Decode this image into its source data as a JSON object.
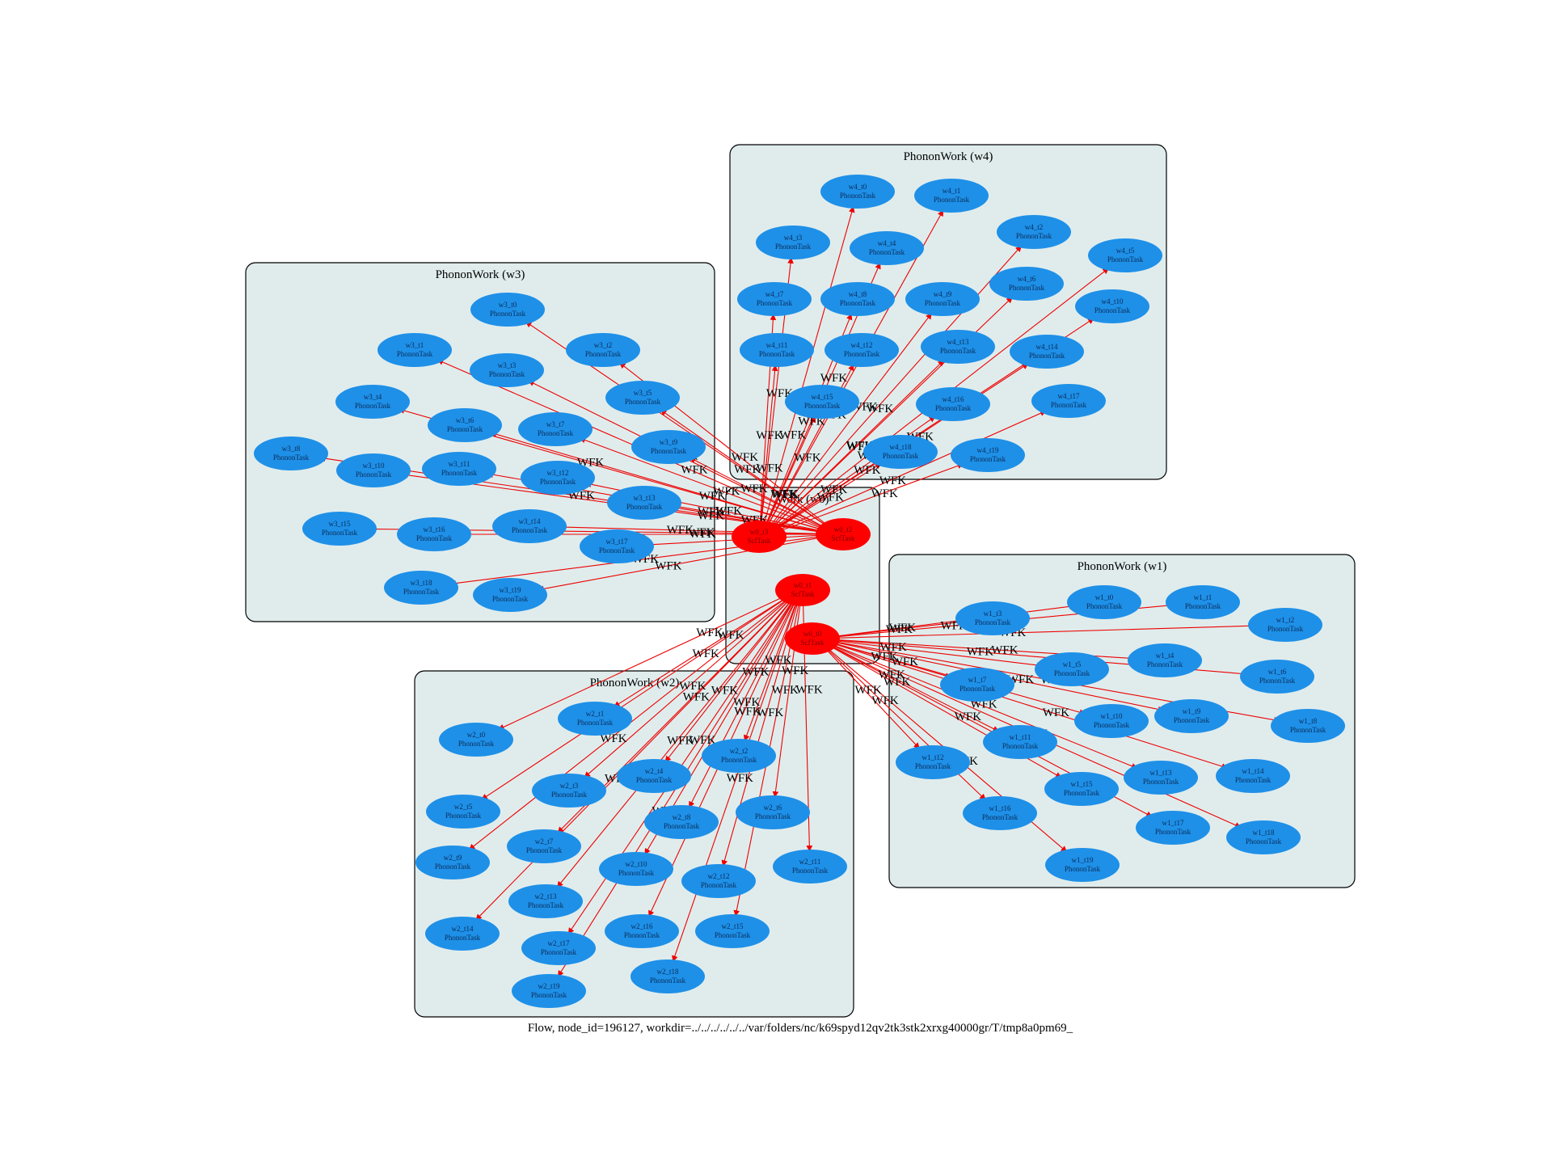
{
  "caption": "Flow, node_id=196127, workdir=../../../../../../var/folders/nc/k69spyd12qv2tk3stk2xrxg40000gr/T/tmp8a0pm69_",
  "edge_label": "WFK",
  "colors": {
    "edge": "#ee0000",
    "phonon_node": "#1e90e8",
    "scf_node": "#ff0000",
    "cluster_fill": "#e0ecec"
  },
  "clusters": [
    {
      "id": "w0",
      "label": "Work (w0)"
    },
    {
      "id": "w1",
      "label": "PhononWork (w1)"
    },
    {
      "id": "w2",
      "label": "PhononWork (w2)"
    },
    {
      "id": "w3",
      "label": "PhononWork (w3)"
    },
    {
      "id": "w4",
      "label": "PhononWork (w4)"
    }
  ],
  "scf_nodes": [
    {
      "id": "w0_t0",
      "name": "w0_t0",
      "kind": "ScfTask"
    },
    {
      "id": "w0_t1",
      "name": "w0_t1",
      "kind": "ScfTask"
    },
    {
      "id": "w0_t2",
      "name": "w0_t2",
      "kind": "ScfTask"
    },
    {
      "id": "w0_t3",
      "name": "w0_t3",
      "kind": "ScfTask"
    }
  ],
  "phonon_nodes": [
    {
      "name": "w1_t0",
      "kind": "PhononTask"
    },
    {
      "name": "w1_t1",
      "kind": "PhononTask"
    },
    {
      "name": "w1_t2",
      "kind": "PhononTask"
    },
    {
      "name": "w1_t3",
      "kind": "PhononTask"
    },
    {
      "name": "w1_t4",
      "kind": "PhononTask"
    },
    {
      "name": "w1_t5",
      "kind": "PhononTask"
    },
    {
      "name": "w1_t6",
      "kind": "PhononTask"
    },
    {
      "name": "w1_t7",
      "kind": "PhononTask"
    },
    {
      "name": "w1_t8",
      "kind": "PhononTask"
    },
    {
      "name": "w1_t9",
      "kind": "PhononTask"
    },
    {
      "name": "w1_t10",
      "kind": "PhononTask"
    },
    {
      "name": "w1_t11",
      "kind": "PhononTask"
    },
    {
      "name": "w1_t12",
      "kind": "PhononTask"
    },
    {
      "name": "w1_t13",
      "kind": "PhononTask"
    },
    {
      "name": "w1_t14",
      "kind": "PhononTask"
    },
    {
      "name": "w1_t15",
      "kind": "PhononTask"
    },
    {
      "name": "w1_t16",
      "kind": "PhononTask"
    },
    {
      "name": "w1_t17",
      "kind": "PhononTask"
    },
    {
      "name": "w1_t18",
      "kind": "PhononTask"
    },
    {
      "name": "w1_t19",
      "kind": "PhononTask"
    },
    {
      "name": "w2_t0",
      "kind": "PhononTask"
    },
    {
      "name": "w2_t1",
      "kind": "PhononTask"
    },
    {
      "name": "w2_t2",
      "kind": "PhononTask"
    },
    {
      "name": "w2_t3",
      "kind": "PhononTask"
    },
    {
      "name": "w2_t4",
      "kind": "PhononTask"
    },
    {
      "name": "w2_t5",
      "kind": "PhononTask"
    },
    {
      "name": "w2_t6",
      "kind": "PhononTask"
    },
    {
      "name": "w2_t7",
      "kind": "PhononTask"
    },
    {
      "name": "w2_t8",
      "kind": "PhononTask"
    },
    {
      "name": "w2_t9",
      "kind": "PhononTask"
    },
    {
      "name": "w2_t10",
      "kind": "PhononTask"
    },
    {
      "name": "w2_t11",
      "kind": "PhononTask"
    },
    {
      "name": "w2_t12",
      "kind": "PhononTask"
    },
    {
      "name": "w2_t13",
      "kind": "PhononTask"
    },
    {
      "name": "w2_t14",
      "kind": "PhononTask"
    },
    {
      "name": "w2_t15",
      "kind": "PhononTask"
    },
    {
      "name": "w2_t16",
      "kind": "PhononTask"
    },
    {
      "name": "w2_t17",
      "kind": "PhononTask"
    },
    {
      "name": "w2_t18",
      "kind": "PhononTask"
    },
    {
      "name": "w2_t19",
      "kind": "PhononTask"
    },
    {
      "name": "w3_t0",
      "kind": "PhononTask"
    },
    {
      "name": "w3_t1",
      "kind": "PhononTask"
    },
    {
      "name": "w3_t2",
      "kind": "PhononTask"
    },
    {
      "name": "w3_t3",
      "kind": "PhononTask"
    },
    {
      "name": "w3_t4",
      "kind": "PhononTask"
    },
    {
      "name": "w3_t5",
      "kind": "PhononTask"
    },
    {
      "name": "w3_t6",
      "kind": "PhononTask"
    },
    {
      "name": "w3_t7",
      "kind": "PhononTask"
    },
    {
      "name": "w3_t8",
      "kind": "PhononTask"
    },
    {
      "name": "w3_t9",
      "kind": "PhononTask"
    },
    {
      "name": "w3_t10",
      "kind": "PhononTask"
    },
    {
      "name": "w3_t11",
      "kind": "PhononTask"
    },
    {
      "name": "w3_t12",
      "kind": "PhononTask"
    },
    {
      "name": "w3_t13",
      "kind": "PhononTask"
    },
    {
      "name": "w3_t14",
      "kind": "PhononTask"
    },
    {
      "name": "w3_t15",
      "kind": "PhononTask"
    },
    {
      "name": "w3_t16",
      "kind": "PhononTask"
    },
    {
      "name": "w3_t17",
      "kind": "PhononTask"
    },
    {
      "name": "w3_t18",
      "kind": "PhononTask"
    },
    {
      "name": "w3_t19",
      "kind": "PhononTask"
    },
    {
      "name": "w4_t0",
      "kind": "PhononTask"
    },
    {
      "name": "w4_t1",
      "kind": "PhononTask"
    },
    {
      "name": "w4_t2",
      "kind": "PhononTask"
    },
    {
      "name": "w4_t3",
      "kind": "PhononTask"
    },
    {
      "name": "w4_t4",
      "kind": "PhononTask"
    },
    {
      "name": "w4_t5",
      "kind": "PhononTask"
    },
    {
      "name": "w4_t6",
      "kind": "PhononTask"
    },
    {
      "name": "w4_t7",
      "kind": "PhononTask"
    },
    {
      "name": "w4_t8",
      "kind": "PhononTask"
    },
    {
      "name": "w4_t9",
      "kind": "PhononTask"
    },
    {
      "name": "w4_t10",
      "kind": "PhononTask"
    },
    {
      "name": "w4_t11",
      "kind": "PhononTask"
    },
    {
      "name": "w4_t12",
      "kind": "PhononTask"
    },
    {
      "name": "w4_t13",
      "kind": "PhononTask"
    },
    {
      "name": "w4_t14",
      "kind": "PhononTask"
    },
    {
      "name": "w4_t15",
      "kind": "PhononTask"
    },
    {
      "name": "w4_t16",
      "kind": "PhononTask"
    },
    {
      "name": "w4_t17",
      "kind": "PhononTask"
    },
    {
      "name": "w4_t18",
      "kind": "PhononTask"
    },
    {
      "name": "w4_t19",
      "kind": "PhononTask"
    }
  ],
  "edges": [
    {
      "from": "w0_t0",
      "to_work": "w1"
    },
    {
      "from": "w0_t1",
      "to_work": "w2"
    },
    {
      "from": "w0_t2",
      "to_work": "w3"
    },
    {
      "from": "w0_t3",
      "to_work": "w4"
    }
  ]
}
